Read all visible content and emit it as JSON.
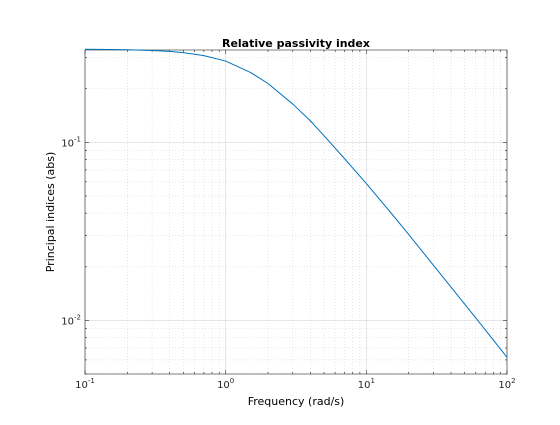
{
  "chart_data": {
    "type": "line",
    "title": "Relative passivity index",
    "xlabel": "Frequency (rad/s)",
    "ylabel": "Principal indices (abs)",
    "xscale": "log",
    "yscale": "log",
    "xlim": [
      0.1,
      100
    ],
    "ylim": [
      0.005,
      0.33
    ],
    "grid": true,
    "minor_grid": true,
    "x_ticks": [
      {
        "value": 0.1,
        "base": "10",
        "exp": "-1"
      },
      {
        "value": 1,
        "base": "10",
        "exp": "0"
      },
      {
        "value": 10,
        "base": "10",
        "exp": "1"
      },
      {
        "value": 100,
        "base": "10",
        "exp": "2"
      }
    ],
    "y_ticks": [
      {
        "value": 0.01,
        "base": "10",
        "exp": "-2"
      },
      {
        "value": 0.1,
        "base": "10",
        "exp": "-1"
      }
    ],
    "series": [
      {
        "color": "#0072bd",
        "x": [
          0.1,
          0.15,
          0.2,
          0.3,
          0.4,
          0.5,
          0.7,
          1,
          1.5,
          2,
          3,
          4,
          5,
          7,
          10,
          15,
          20,
          30,
          50,
          70,
          100
        ],
        "y": [
          0.333,
          0.332,
          0.331,
          0.328,
          0.324,
          0.319,
          0.307,
          0.286,
          0.247,
          0.214,
          0.164,
          0.132,
          0.109,
          0.081,
          0.0587,
          0.0401,
          0.0304,
          0.0204,
          0.01236,
          0.00885,
          0.0062
        ]
      }
    ]
  }
}
